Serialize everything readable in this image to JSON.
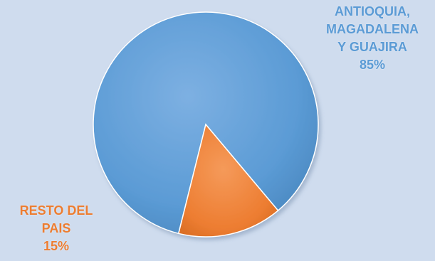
{
  "chart_data": {
    "type": "pie",
    "slices": [
      {
        "label_lines": [
          "ANTIOQUIA,",
          "MAGADALENA",
          "Y GUAJIRA"
        ],
        "percent_label": "85%",
        "value": 85,
        "color": "#5b9bd5"
      },
      {
        "label_lines": [
          "RESTO DEL",
          "PAIS"
        ],
        "percent_label": "15%",
        "value": 15,
        "color": "#ed7d31"
      }
    ]
  }
}
